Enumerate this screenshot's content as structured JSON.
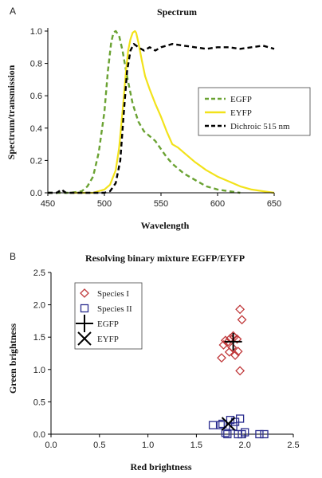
{
  "chart_data": [
    {
      "panel": "A",
      "type": "line",
      "title": "Spectrum",
      "xlabel": "Wavelength",
      "ylabel": "Spectrum/transmission",
      "xlim": [
        450,
        650
      ],
      "ylim": [
        0,
        1.0
      ],
      "xticks": [
        "450",
        "500",
        "550",
        "600",
        "650"
      ],
      "yticks": [
        "0.0",
        "0.2",
        "0.4",
        "0.6",
        "0.8",
        "1.0"
      ],
      "grid": false,
      "legend_position": "center-right",
      "series": [
        {
          "name": "EGFP",
          "color": "#6aa232",
          "style": "dashed",
          "x": [
            450,
            470,
            480,
            485,
            490,
            495,
            500,
            503,
            506,
            508,
            510,
            513,
            516,
            520,
            525,
            530,
            535,
            540,
            545,
            550,
            555,
            560,
            570,
            580,
            590,
            600,
            610,
            620
          ],
          "y": [
            0,
            0,
            0.01,
            0.04,
            0.1,
            0.25,
            0.5,
            0.75,
            0.93,
            0.99,
            1.0,
            0.97,
            0.88,
            0.72,
            0.55,
            0.44,
            0.38,
            0.35,
            0.32,
            0.27,
            0.22,
            0.18,
            0.12,
            0.08,
            0.04,
            0.02,
            0.01,
            0
          ]
        },
        {
          "name": "EYFP",
          "color": "#f2e21a",
          "style": "solid",
          "x": [
            470,
            490,
            500,
            505,
            510,
            513,
            516,
            519,
            521,
            523,
            525,
            527,
            528,
            530,
            533,
            536,
            540,
            545,
            550,
            555,
            560,
            565,
            570,
            580,
            590,
            600,
            610,
            620,
            630,
            640,
            650
          ],
          "y": [
            0,
            0,
            0.02,
            0.05,
            0.14,
            0.28,
            0.5,
            0.75,
            0.88,
            0.95,
            0.99,
            1.0,
            0.99,
            0.93,
            0.82,
            0.72,
            0.64,
            0.55,
            0.47,
            0.38,
            0.3,
            0.28,
            0.25,
            0.19,
            0.14,
            0.1,
            0.07,
            0.04,
            0.02,
            0.01,
            0
          ]
        },
        {
          "name": "Dichroic 515 nm",
          "color": "#000000",
          "style": "dashed",
          "x": [
            450,
            458,
            462,
            466,
            470,
            480,
            490,
            500,
            505,
            510,
            514,
            517,
            520,
            523,
            526,
            530,
            535,
            540,
            545,
            550,
            555,
            560,
            570,
            580,
            590,
            600,
            610,
            620,
            630,
            640,
            650
          ],
          "y": [
            0,
            0,
            0.02,
            0,
            0,
            0,
            0,
            0,
            0.01,
            0.06,
            0.2,
            0.48,
            0.75,
            0.88,
            0.92,
            0.9,
            0.88,
            0.9,
            0.88,
            0.9,
            0.91,
            0.92,
            0.91,
            0.9,
            0.89,
            0.9,
            0.9,
            0.89,
            0.9,
            0.91,
            0.89
          ]
        }
      ]
    },
    {
      "panel": "B",
      "type": "scatter",
      "title": "Resolving binary mixture EGFP/EYFP",
      "xlabel": "Red brightness",
      "ylabel": "Green brightness",
      "xlim": [
        0,
        2.5
      ],
      "ylim": [
        0,
        2.5
      ],
      "xticks": [
        "0.0",
        "0.5",
        "1.0",
        "1.5",
        "2.0",
        "2.5"
      ],
      "yticks": [
        "0.0",
        "0.5",
        "1.0",
        "1.5",
        "2.0",
        "2.5"
      ],
      "grid": false,
      "legend_position": "top-left",
      "series": [
        {
          "name": "Species I",
          "marker": "diamond",
          "color": "#c0393b",
          "x": [
            1.95,
            1.97,
            1.88,
            1.92,
            1.85,
            1.78,
            1.82,
            1.87,
            1.93,
            1.9,
            1.76,
            1.84,
            1.95,
            1.89,
            1.8
          ],
          "y": [
            1.93,
            1.77,
            1.52,
            1.47,
            1.48,
            1.38,
            1.42,
            1.34,
            1.28,
            1.22,
            1.18,
            1.27,
            0.98,
            1.5,
            1.45
          ]
        },
        {
          "name": "Species II",
          "marker": "square",
          "color": "#2b2d8f",
          "x": [
            1.67,
            1.75,
            1.77,
            1.82,
            1.9,
            1.95,
            1.97,
            2.0,
            1.93,
            1.88,
            2.15,
            2.2,
            1.85,
            1.8
          ],
          "y": [
            0.14,
            0.14,
            0.16,
            0.0,
            0.19,
            0.24,
            0.0,
            0.03,
            0.0,
            0.12,
            0.0,
            0.0,
            0.22,
            0.02
          ]
        },
        {
          "name": "EGFP",
          "marker": "plus",
          "color": "#000000",
          "x": [
            1.88
          ],
          "y": [
            1.43
          ]
        },
        {
          "name": "EYFP",
          "marker": "x",
          "color": "#000000",
          "x": [
            1.83
          ],
          "y": [
            0.16
          ]
        }
      ]
    }
  ]
}
